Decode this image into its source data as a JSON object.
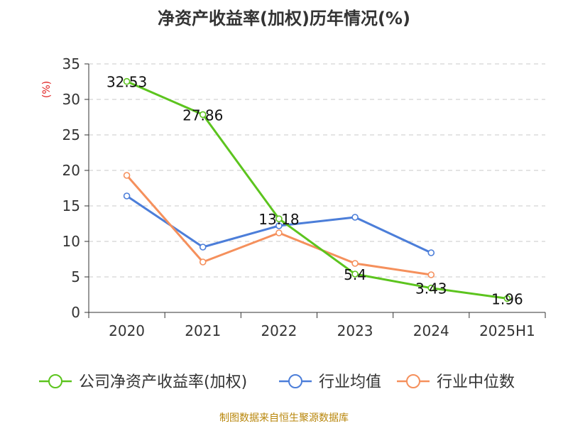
{
  "chart_data": {
    "type": "line",
    "title": "净资产收益率(加权)历年情况(%)",
    "ylabel": "(%)",
    "xlabel": "",
    "categories": [
      "2020",
      "2021",
      "2022",
      "2023",
      "2024",
      "2025H1"
    ],
    "ylim": [
      0,
      35
    ],
    "yticks": [
      0,
      5,
      10,
      15,
      20,
      25,
      30,
      35
    ],
    "grid": true,
    "legend_position": "bottom",
    "series": [
      {
        "name": "公司净资产收益率(加权)",
        "color": "#5cc41e",
        "values": [
          32.53,
          27.86,
          13.18,
          5.4,
          3.43,
          1.96
        ],
        "labels": [
          "32.53",
          "27.86",
          "13.18",
          "5.4",
          "3.43",
          "1.96"
        ]
      },
      {
        "name": "行业均值",
        "color": "#4c7ed9",
        "values": [
          16.4,
          9.2,
          12.2,
          13.4,
          8.4,
          null
        ]
      },
      {
        "name": "行业中位数",
        "color": "#f5905c",
        "values": [
          19.3,
          7.1,
          11.2,
          6.9,
          5.3,
          null
        ]
      }
    ]
  },
  "footer": {
    "source": "制图数据来自恒生聚源数据库"
  }
}
